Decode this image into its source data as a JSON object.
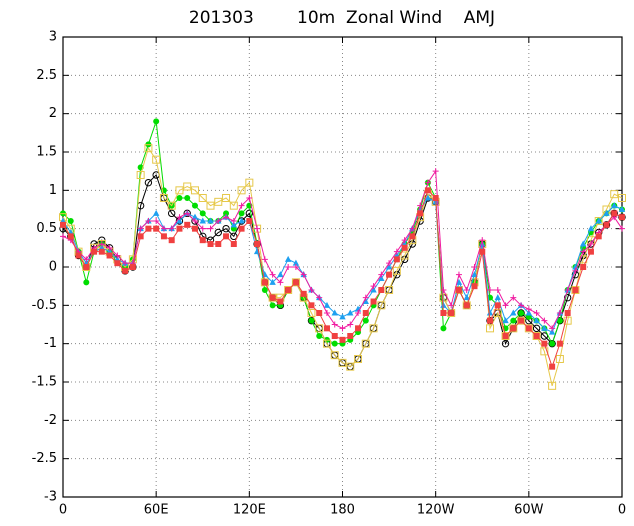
{
  "chart_data": {
    "type": "line",
    "title": "201303        10m  Zonal Wind    AMJ",
    "x": [
      0,
      5,
      10,
      15,
      20,
      25,
      30,
      35,
      40,
      45,
      50,
      55,
      60,
      65,
      70,
      75,
      80,
      85,
      90,
      95,
      100,
      105,
      110,
      115,
      120,
      125,
      130,
      135,
      140,
      145,
      150,
      155,
      160,
      165,
      170,
      175,
      180,
      185,
      190,
      195,
      200,
      205,
      210,
      215,
      220,
      225,
      230,
      235,
      240,
      245,
      250,
      255,
      260,
      265,
      270,
      275,
      280,
      285,
      290,
      295,
      300,
      305,
      310,
      315,
      320,
      325,
      330,
      335,
      340,
      345,
      350,
      355,
      360
    ],
    "xlim": [
      0,
      360
    ],
    "xticks": [
      0,
      {
        "value": 60,
        "label": "60E"
      },
      {
        "value": 120,
        "label": "120E"
      },
      180,
      {
        "value": 240,
        "label": "120W"
      },
      {
        "value": 300,
        "label": "60W"
      },
      {
        "value": 360,
        "label": "0"
      }
    ],
    "ylim": [
      -3,
      3
    ],
    "yticks": [
      -3,
      -2.5,
      -2,
      -1.5,
      -1,
      -0.5,
      0,
      0.5,
      1,
      1.5,
      2,
      2.5,
      3
    ],
    "grid": true,
    "series": [
      {
        "color": "#000000",
        "marker": "open-circle",
        "values": [
          0.5,
          0.4,
          0.15,
          0.0,
          0.3,
          0.35,
          0.25,
          0.1,
          -0.05,
          0.0,
          0.8,
          1.1,
          1.2,
          0.9,
          0.7,
          0.6,
          0.7,
          0.6,
          0.4,
          0.35,
          0.45,
          0.5,
          0.4,
          0.6,
          0.7,
          0.3,
          -0.2,
          -0.4,
          -0.5,
          -0.3,
          -0.2,
          -0.4,
          -0.7,
          -0.8,
          -1.0,
          -1.15,
          -1.25,
          -1.3,
          -1.2,
          -1.0,
          -0.8,
          -0.5,
          -0.3,
          -0.1,
          0.1,
          0.3,
          0.6,
          0.9,
          0.85,
          -0.4,
          -0.6,
          -0.3,
          -0.5,
          -0.2,
          0.3,
          -0.7,
          -0.6,
          -1.0,
          -0.8,
          -0.6,
          -0.7,
          -0.8,
          -0.9,
          -1.0,
          -0.7,
          -0.4,
          -0.1,
          0.15,
          0.3,
          0.45,
          0.55,
          0.7,
          0.65
        ]
      },
      {
        "color": "#00dd00",
        "marker": "dot",
        "values": [
          0.7,
          0.6,
          0.2,
          -0.2,
          0.2,
          0.3,
          0.2,
          0.05,
          0.0,
          0.1,
          1.3,
          1.6,
          1.9,
          1.0,
          0.8,
          0.9,
          0.9,
          0.8,
          0.7,
          0.6,
          0.6,
          0.7,
          0.5,
          0.7,
          0.8,
          0.3,
          -0.3,
          -0.5,
          -0.5,
          -0.3,
          -0.2,
          -0.4,
          -0.7,
          -0.9,
          -0.95,
          -1.0,
          -1.0,
          -0.95,
          -0.85,
          -0.7,
          -0.5,
          -0.3,
          -0.1,
          0.1,
          0.3,
          0.45,
          0.75,
          1.1,
          0.9,
          -0.8,
          -0.6,
          -0.3,
          -0.5,
          -0.2,
          0.3,
          -0.4,
          -0.5,
          -0.8,
          -0.7,
          -0.6,
          -0.65,
          -0.7,
          -0.8,
          -1.0,
          -0.7,
          -0.3,
          0.0,
          0.25,
          0.45,
          0.6,
          0.7,
          0.8,
          0.75
        ]
      },
      {
        "color": "#e6c84a",
        "marker": "open-square",
        "values": [
          0.65,
          0.5,
          0.2,
          0.0,
          0.25,
          0.3,
          0.2,
          0.1,
          0.0,
          0.1,
          1.2,
          1.55,
          1.4,
          0.9,
          0.8,
          1.0,
          1.05,
          1.0,
          0.9,
          0.8,
          0.85,
          0.9,
          0.8,
          1.0,
          1.1,
          0.5,
          -0.2,
          -0.4,
          -0.4,
          -0.3,
          -0.2,
          -0.4,
          -0.6,
          -0.8,
          -1.0,
          -1.15,
          -1.25,
          -1.3,
          -1.2,
          -1.0,
          -0.8,
          -0.5,
          -0.3,
          -0.05,
          0.15,
          0.35,
          0.65,
          0.95,
          0.85,
          -0.4,
          -0.6,
          -0.3,
          -0.5,
          -0.2,
          0.3,
          -0.8,
          -0.6,
          -0.9,
          -0.8,
          -0.7,
          -0.8,
          -0.9,
          -1.1,
          -1.55,
          -1.2,
          -0.7,
          -0.3,
          0.1,
          0.35,
          0.6,
          0.75,
          0.95,
          0.9
        ]
      },
      {
        "color": "#1ea0f0",
        "marker": "triangle",
        "values": [
          0.6,
          0.45,
          0.2,
          0.05,
          0.2,
          0.25,
          0.2,
          0.1,
          0.05,
          0.05,
          0.5,
          0.6,
          0.7,
          0.5,
          0.5,
          0.6,
          0.7,
          0.65,
          0.6,
          0.6,
          0.6,
          0.65,
          0.55,
          0.6,
          0.6,
          0.2,
          -0.1,
          -0.2,
          -0.1,
          0.1,
          0.05,
          -0.1,
          -0.3,
          -0.4,
          -0.5,
          -0.6,
          -0.65,
          -0.6,
          -0.55,
          -0.45,
          -0.3,
          -0.15,
          0.0,
          0.15,
          0.3,
          0.5,
          0.75,
          0.9,
          0.85,
          -0.5,
          -0.6,
          -0.2,
          -0.4,
          -0.1,
          0.3,
          -0.6,
          -0.4,
          -0.7,
          -0.6,
          -0.5,
          -0.6,
          -0.7,
          -0.8,
          -0.85,
          -0.6,
          -0.3,
          0.0,
          0.3,
          0.5,
          0.6,
          0.7,
          0.8,
          0.75
        ]
      },
      {
        "color": "#f01aa0",
        "marker": "cross",
        "values": [
          0.4,
          0.35,
          0.2,
          0.1,
          0.25,
          0.3,
          0.25,
          0.15,
          0.05,
          0.05,
          0.5,
          0.6,
          0.6,
          0.5,
          0.5,
          0.65,
          0.7,
          0.6,
          0.5,
          0.5,
          0.6,
          0.65,
          0.6,
          0.8,
          0.9,
          0.5,
          0.1,
          -0.1,
          -0.2,
          0.0,
          0.0,
          -0.1,
          -0.3,
          -0.4,
          -0.6,
          -0.75,
          -0.8,
          -0.75,
          -0.6,
          -0.4,
          -0.25,
          -0.1,
          0.05,
          0.2,
          0.35,
          0.5,
          0.8,
          1.1,
          1.25,
          -0.3,
          -0.5,
          -0.1,
          -0.3,
          0.0,
          0.35,
          -0.3,
          -0.3,
          -0.5,
          -0.4,
          -0.5,
          -0.55,
          -0.6,
          -0.7,
          -0.8,
          -0.6,
          -0.3,
          -0.05,
          0.2,
          0.3,
          0.45,
          0.55,
          0.65,
          0.5
        ]
      },
      {
        "color": "#f04040",
        "marker": "square",
        "values": [
          0.55,
          0.4,
          0.15,
          0.0,
          0.2,
          0.2,
          0.15,
          0.05,
          -0.05,
          0.0,
          0.4,
          0.5,
          0.5,
          0.4,
          0.35,
          0.5,
          0.55,
          0.5,
          0.35,
          0.3,
          0.3,
          0.4,
          0.3,
          0.5,
          0.6,
          0.3,
          -0.2,
          -0.4,
          -0.45,
          -0.3,
          -0.2,
          -0.35,
          -0.5,
          -0.6,
          -0.8,
          -0.9,
          -0.95,
          -0.9,
          -0.8,
          -0.6,
          -0.45,
          -0.3,
          -0.1,
          0.1,
          0.25,
          0.4,
          0.7,
          1.0,
          0.9,
          -0.6,
          -0.6,
          -0.3,
          -0.5,
          -0.25,
          0.2,
          -0.7,
          -0.5,
          -0.9,
          -0.8,
          -0.7,
          -0.8,
          -0.9,
          -1.0,
          -1.3,
          -1.0,
          -0.6,
          -0.3,
          0.0,
          0.2,
          0.4,
          0.55,
          0.7,
          0.65
        ]
      }
    ]
  }
}
